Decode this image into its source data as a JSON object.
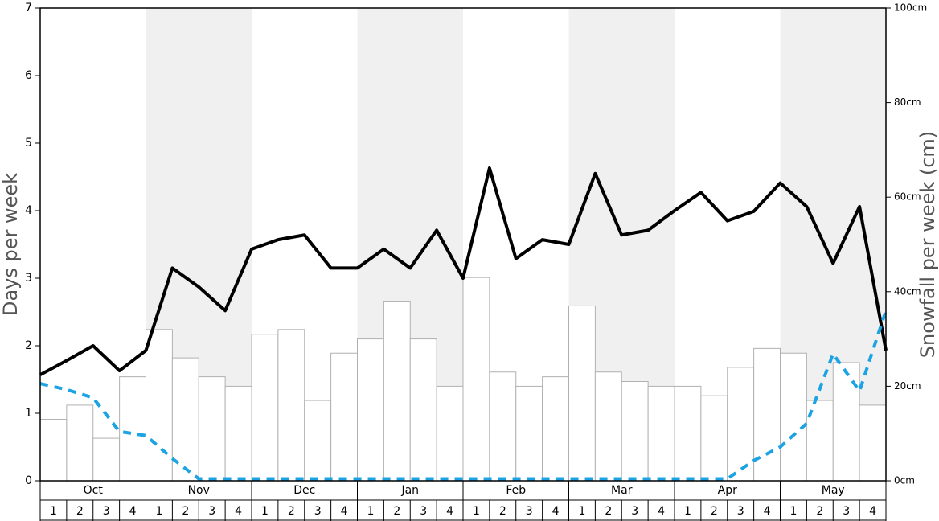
{
  "chart_data": {
    "type": "bar_line",
    "y_label": "Days per week",
    "y2_label": "Snowfall per week (cm)",
    "months": [
      "Oct",
      "Nov",
      "Dec",
      "Jan",
      "Feb",
      "Mar",
      "Apr",
      "May"
    ],
    "weeks": [
      "1",
      "2",
      "3",
      "4"
    ],
    "ylim": [
      0,
      7
    ],
    "yticks": [
      0,
      1,
      2,
      3,
      4,
      5,
      6,
      7
    ],
    "y2lim": [
      0,
      100
    ],
    "y2ticks": [
      {
        "value": 0,
        "label": "0cm"
      },
      {
        "value": 20,
        "label": "20cm"
      },
      {
        "value": 40,
        "label": "40cm"
      },
      {
        "value": 60,
        "label": "60cm"
      },
      {
        "value": 80,
        "label": "80cm"
      },
      {
        "value": 100,
        "label": "100cm"
      }
    ],
    "bars": {
      "axis": "y2",
      "color": "#ffffff",
      "values": [
        13,
        16,
        9,
        22,
        32,
        26,
        22,
        20,
        31,
        32,
        17,
        27,
        30,
        38,
        30,
        20,
        43,
        23,
        20,
        22,
        37,
        23,
        21,
        20,
        20,
        18,
        24,
        28,
        27,
        17,
        25,
        16
      ]
    },
    "lines": [
      {
        "color": "#000000",
        "dashed": false,
        "values": [
          1.57,
          1.78,
          2.0,
          1.63,
          1.93,
          3.15,
          2.87,
          2.52,
          3.43,
          3.57,
          3.64,
          3.15,
          3.15,
          3.43,
          3.15,
          3.71,
          3.0,
          4.63,
          3.29,
          3.57,
          3.5,
          4.55,
          3.64,
          3.71,
          4.0,
          4.27,
          3.85,
          3.99,
          4.41,
          4.06,
          3.22,
          4.06,
          1.93
        ]
      },
      {
        "color": "#1ca3e3",
        "dashed": true,
        "values": [
          1.44,
          1.35,
          1.23,
          0.73,
          0.67,
          0.33,
          0.03,
          0.03,
          0.03,
          0.03,
          0.03,
          0.03,
          0.03,
          0.03,
          0.03,
          0.03,
          0.03,
          0.03,
          0.03,
          0.03,
          0.03,
          0.03,
          0.03,
          0.03,
          0.03,
          0.03,
          0.03,
          0.3,
          0.5,
          0.85,
          1.88,
          1.33,
          2.52
        ]
      }
    ]
  }
}
